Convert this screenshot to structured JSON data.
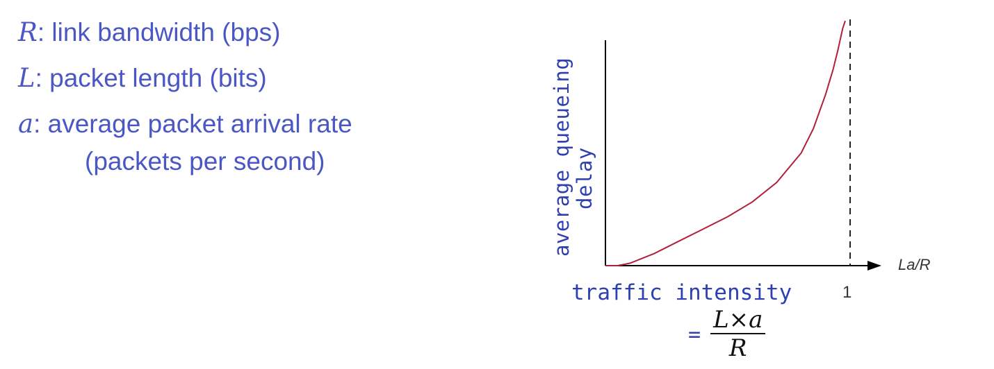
{
  "definitions": [
    {
      "symbol": "R",
      "text": ": link bandwidth (bps)"
    },
    {
      "symbol": "L",
      "text": ": packet length (bits)"
    },
    {
      "symbol": "a",
      "text": ": average packet arrival rate"
    }
  ],
  "definition_continuation": "(packets per second)",
  "colors": {
    "definition_text": "#4a57c4",
    "label_text": "#2e3fb0",
    "curve": "#b0203a",
    "axis": "#000000"
  },
  "chart_data": {
    "type": "line",
    "ylabel_lines": [
      "average queueing",
      "delay"
    ],
    "xlabel": "traffic intensity",
    "x_axis_name": "La/R",
    "x_ticks": [
      "1"
    ],
    "asymptote_x": 1,
    "formula": {
      "prefix": "=",
      "numerator": "L×a",
      "denominator": "R"
    },
    "series": [
      {
        "x": [
          0,
          0.05,
          0.1,
          0.2,
          0.3,
          0.4,
          0.5,
          0.6,
          0.7,
          0.8,
          0.85,
          0.9,
          0.93,
          0.95,
          0.97,
          0.98
        ],
        "values": [
          0,
          0,
          0.01,
          0.05,
          0.1,
          0.15,
          0.2,
          0.26,
          0.34,
          0.46,
          0.56,
          0.7,
          0.8,
          0.88,
          0.97,
          1.0
        ]
      }
    ]
  }
}
